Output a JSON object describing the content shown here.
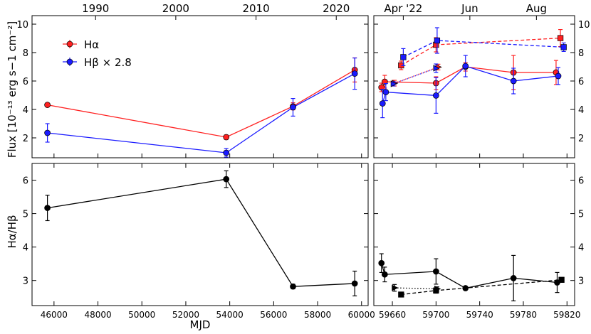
{
  "chart_data": {
    "type": "scatter",
    "figure": {
      "xlabel": "MJD",
      "top_left_ylabel": "Flux [10⁻¹³ erg s−1 cm⁻²]",
      "bottom_left_ylabel": "Hα/Hβ",
      "legend": {
        "placement": "top-left",
        "entries": [
          {
            "label": "Hα",
            "color": "#ff2020"
          },
          {
            "label": "Hβ × 2.8",
            "color": "#1a1aff"
          }
        ]
      }
    },
    "colors": {
      "halpha": "#ff2020",
      "hbeta": "#1a1aff",
      "ratio": "#000000"
    },
    "long_xlim": [
      45000,
      60300
    ],
    "long_xticks": [
      46000,
      48000,
      50000,
      52000,
      54000,
      56000,
      58000,
      60000
    ],
    "long_top_ticks": [
      {
        "label": "1990",
        "mjd": 47892
      },
      {
        "label": "2000",
        "mjd": 51544
      },
      {
        "label": "2010",
        "mjd": 55197
      },
      {
        "label": "2020",
        "mjd": 58849
      }
    ],
    "short_xlim": [
      59643,
      59827
    ],
    "short_xticks": [
      59660,
      59700,
      59740,
      59780,
      59820
    ],
    "short_top_ticks": [
      {
        "label": "Apr '22",
        "mjd": 59670
      },
      {
        "label": "Jun",
        "mjd": 59731
      },
      {
        "label": "Aug",
        "mjd": 59792
      }
    ],
    "flux_ylim": [
      0.6,
      10.6
    ],
    "flux_yticks": [
      2,
      4,
      6,
      8,
      10
    ],
    "ratio_ylim": [
      2.25,
      6.5
    ],
    "ratio_yticks": [
      3,
      4,
      5,
      6
    ],
    "long_flux": {
      "halpha": [
        {
          "x": 45700,
          "y": 4.32,
          "err": 0.08
        },
        {
          "x": 53840,
          "y": 2.05,
          "err": 0.15
        },
        {
          "x": 56880,
          "y": 4.22,
          "err": 0.25
        },
        {
          "x": 59690,
          "y": 6.78,
          "err": 0.85
        }
      ],
      "hbeta": [
        {
          "x": 45700,
          "y": 2.35,
          "err": 0.65
        },
        {
          "x": 53840,
          "y": 0.95,
          "err": 0.3
        },
        {
          "x": 56880,
          "y": 4.15,
          "err": 0.62
        },
        {
          "x": 59690,
          "y": 6.52,
          "err": 1.1
        }
      ]
    },
    "long_ratio": [
      {
        "x": 45700,
        "y": 5.17,
        "err": 0.38
      },
      {
        "x": 53840,
        "y": 6.03,
        "err": 0.25
      },
      {
        "x": 56880,
        "y": 2.82,
        "err": 0.07
      },
      {
        "x": 59690,
        "y": 2.91,
        "err": 0.37
      }
    ],
    "short_flux": {
      "halpha_solid": [
        {
          "x": 59650,
          "y": 5.55,
          "err": 0.3
        },
        {
          "x": 59653,
          "y": 5.95,
          "err": 0.45
        },
        {
          "x": 59700,
          "y": 5.85,
          "err": 0.45
        },
        {
          "x": 59727,
          "y": 7.0,
          "err": 0.3
        },
        {
          "x": 59771,
          "y": 6.6,
          "err": 1.2
        },
        {
          "x": 59810,
          "y": 6.6,
          "err": 0.85
        }
      ],
      "hbeta_solid": [
        {
          "x": 59651,
          "y": 4.42,
          "err": 1.0
        },
        {
          "x": 59654,
          "y": 5.22,
          "err": 0.6
        },
        {
          "x": 59700,
          "y": 4.98,
          "err": 1.25
        },
        {
          "x": 59727,
          "y": 7.05,
          "err": 0.75
        },
        {
          "x": 59771,
          "y": 6.0,
          "err": 0.9
        },
        {
          "x": 59812,
          "y": 6.35,
          "err": 0.6
        }
      ],
      "halpha_dashed": [
        {
          "x": 59668,
          "y": 7.1,
          "err": 0.3
        },
        {
          "x": 59700,
          "y": 8.55,
          "err": 0.5
        },
        {
          "x": 59814,
          "y": 9.02,
          "err": 0.6
        }
      ],
      "hbeta_dashed": [
        {
          "x": 59670,
          "y": 7.68,
          "err": 0.6
        },
        {
          "x": 59701,
          "y": 8.85,
          "err": 0.9
        },
        {
          "x": 59817,
          "y": 8.38,
          "err": 0.3
        }
      ],
      "halpha_dotted": [
        {
          "x": 59662,
          "y": 5.85,
          "err": 0.2
        },
        {
          "x": 59702,
          "y": 6.98,
          "err": 0.2
        }
      ],
      "hbeta_dotted": [
        {
          "x": 59661,
          "y": 5.8,
          "err": 0.15
        },
        {
          "x": 59700,
          "y": 6.9,
          "err": 0.3
        }
      ]
    },
    "short_ratio": {
      "solid": [
        {
          "x": 59650,
          "y": 3.52,
          "err": 0.28
        },
        {
          "x": 59653,
          "y": 3.18,
          "err": 0.22
        },
        {
          "x": 59700,
          "y": 3.27,
          "err": 0.38
        },
        {
          "x": 59727,
          "y": 2.77,
          "err": 0.05
        },
        {
          "x": 59771,
          "y": 3.07,
          "err": 0.68
        },
        {
          "x": 59811,
          "y": 2.94,
          "err": 0.3
        }
      ],
      "dashed": [
        {
          "x": 59668,
          "y": 2.58,
          "err": 0.06
        },
        {
          "x": 59700,
          "y": 2.7,
          "err": 0.08
        },
        {
          "x": 59815,
          "y": 3.02,
          "err": 0.07
        }
      ],
      "dotted": [
        {
          "x": 59662,
          "y": 2.78,
          "err": 0.1
        },
        {
          "x": 59701,
          "y": 2.75,
          "err": 0.06
        }
      ]
    }
  }
}
